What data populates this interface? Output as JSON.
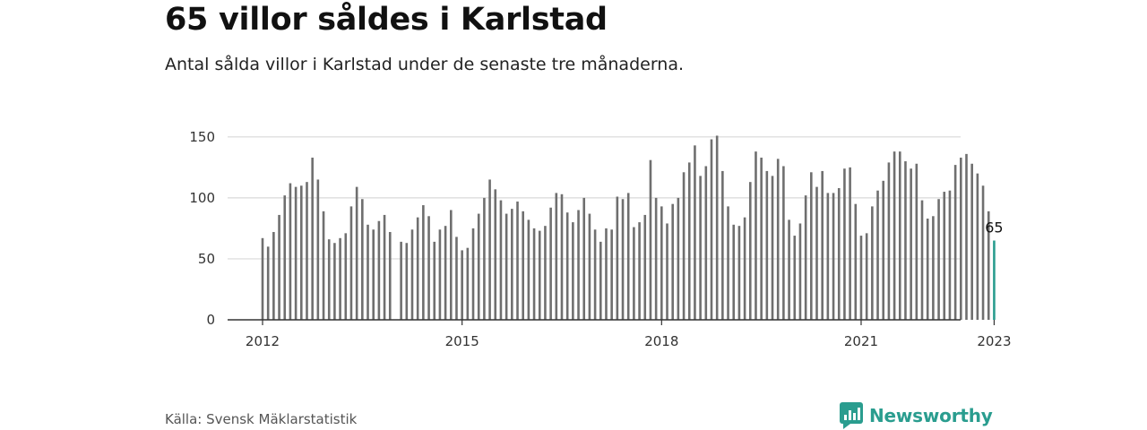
{
  "title": "65 villor såldes i Karlstad",
  "subtitle": "Antal sålda villor i Karlstad under de senaste tre månaderna.",
  "source": "Källa: Svensk Mäklarstatistik",
  "brand": {
    "name": "Newsworthy",
    "icon": "newsworthy-logo-icon"
  },
  "colors": {
    "bar": "#6f6f6f",
    "highlight": "#2a9d8f",
    "grid": "#d9d9d9",
    "axis": "#333333"
  },
  "chart_data": {
    "type": "bar",
    "x_start": "2012-01",
    "x_step": "month",
    "x_ticks": [
      "2012",
      "2015",
      "2018",
      "2021",
      "2023"
    ],
    "x_tick_dates": [
      "2012-01",
      "2015-01",
      "2018-01",
      "2021-01",
      "2023-01"
    ],
    "y_ticks": [
      0,
      50,
      100,
      150
    ],
    "ylim": [
      0,
      155
    ],
    "grid": true,
    "highlight_last": true,
    "annotation": "65",
    "values": [
      67,
      60,
      72,
      86,
      102,
      112,
      109,
      110,
      113,
      133,
      115,
      89,
      66,
      63,
      67,
      71,
      93,
      109,
      99,
      78,
      74,
      81,
      86,
      72,
      null,
      64,
      63,
      74,
      84,
      94,
      85,
      64,
      74,
      77,
      90,
      68,
      57,
      59,
      75,
      87,
      100,
      115,
      107,
      98,
      87,
      91,
      97,
      89,
      82,
      75,
      73,
      77,
      92,
      104,
      103,
      88,
      80,
      90,
      100,
      87,
      74,
      64,
      75,
      74,
      101,
      99,
      104,
      76,
      80,
      86,
      131,
      100,
      93,
      79,
      95,
      100,
      121,
      129,
      143,
      118,
      126,
      148,
      151,
      122,
      93,
      78,
      77,
      84,
      113,
      138,
      133,
      122,
      118,
      132,
      126,
      82,
      69,
      79,
      102,
      121,
      109,
      122,
      104,
      104,
      108,
      124,
      125,
      95,
      69,
      71,
      93,
      106,
      114,
      129,
      138,
      138,
      130,
      124,
      128,
      98,
      83,
      85,
      99,
      105,
      106,
      127,
      133,
      136,
      128,
      120,
      110,
      89,
      65
    ]
  }
}
